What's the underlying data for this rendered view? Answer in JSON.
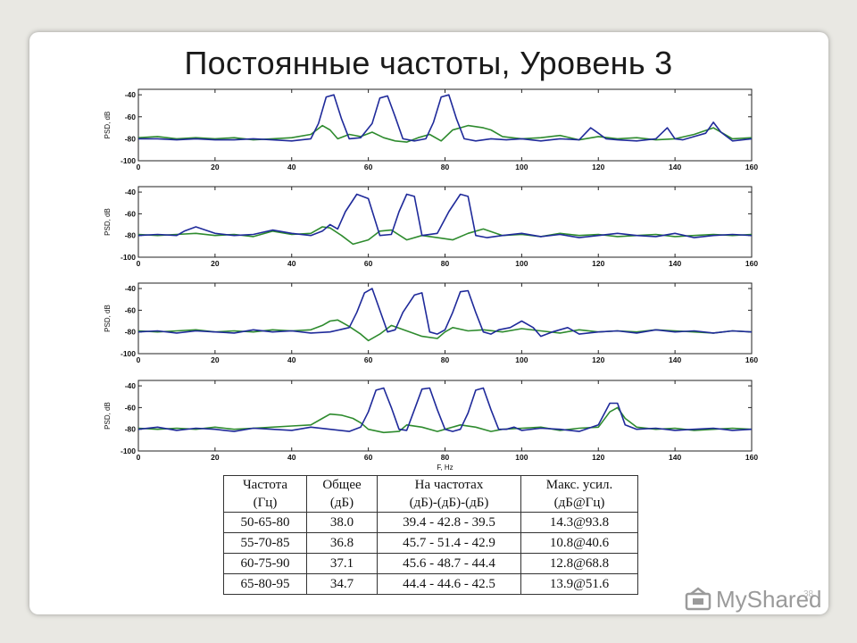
{
  "slide": {
    "title": "Постоянные частоты, Уровень 3",
    "page_number": "38",
    "watermark": "MyShared",
    "watermark_icon": "myshared-logo-icon"
  },
  "colors": {
    "blue": "#1f2a9a",
    "green": "#2e8b2e",
    "axis": "#222222"
  },
  "table": {
    "headers": [
      [
        "Частота",
        "(Гц)"
      ],
      [
        "Общее",
        "(дБ)"
      ],
      [
        "На частотах",
        "(дБ)-(дБ)-(дБ)"
      ],
      [
        "Макс. усил.",
        "(дБ@Гц)"
      ]
    ],
    "rows": [
      [
        "50-65-80",
        "38.0",
        "39.4 - 42.8 - 39.5",
        "14.3@93.8"
      ],
      [
        "55-70-85",
        "36.8",
        "45.7 - 51.4 - 42.9",
        "10.8@40.6"
      ],
      [
        "60-75-90",
        "37.1",
        "45.6 - 48.7 - 44.4",
        "12.8@68.8"
      ],
      [
        "65-80-95",
        "34.7",
        "44.4 - 44.6 - 42.5",
        "13.9@51.6"
      ]
    ]
  },
  "chart_data": [
    {
      "type": "line",
      "ylabel": "PSD, dB",
      "xlabel": "",
      "xlim": [
        0,
        160
      ],
      "ylim": [
        -100,
        -35
      ],
      "xticks": [
        0,
        20,
        40,
        60,
        80,
        100,
        120,
        140,
        160
      ],
      "yticks": [
        -40,
        -60,
        -80,
        -100
      ],
      "series": [
        {
          "color": "#1f2a9a",
          "x": [
            0,
            5,
            10,
            15,
            20,
            25,
            30,
            35,
            40,
            45,
            47,
            49,
            51,
            53,
            55,
            58,
            61,
            63,
            65,
            67,
            69,
            72,
            75,
            77,
            79,
            81,
            83,
            85,
            88,
            92,
            96,
            100,
            105,
            110,
            115,
            118,
            120,
            122,
            125,
            130,
            135,
            138,
            140,
            142,
            145,
            148,
            150,
            152,
            155,
            160
          ],
          "y": [
            -80,
            -80,
            -81,
            -80,
            -81,
            -81,
            -80,
            -81,
            -82,
            -80,
            -66,
            -42,
            -40,
            -62,
            -80,
            -79,
            -66,
            -43,
            -41,
            -60,
            -80,
            -82,
            -80,
            -65,
            -42,
            -40,
            -62,
            -80,
            -82,
            -80,
            -81,
            -80,
            -82,
            -80,
            -81,
            -70,
            -75,
            -80,
            -81,
            -82,
            -80,
            -70,
            -80,
            -81,
            -78,
            -75,
            -65,
            -74,
            -82,
            -80
          ]
        },
        {
          "color": "#2e8b2e",
          "x": [
            0,
            5,
            10,
            15,
            20,
            25,
            30,
            35,
            40,
            45,
            48,
            50,
            52,
            55,
            58,
            61,
            64,
            67,
            70,
            73,
            76,
            79,
            82,
            84,
            86,
            88,
            90,
            92,
            95,
            100,
            105,
            110,
            115,
            120,
            125,
            130,
            135,
            140,
            145,
            150,
            155,
            160
          ],
          "y": [
            -79,
            -78,
            -80,
            -79,
            -80,
            -79,
            -81,
            -80,
            -79,
            -76,
            -68,
            -72,
            -80,
            -76,
            -78,
            -74,
            -79,
            -82,
            -83,
            -79,
            -76,
            -82,
            -72,
            -70,
            -68,
            -69,
            -70,
            -72,
            -78,
            -80,
            -79,
            -77,
            -81,
            -78,
            -80,
            -79,
            -81,
            -80,
            -76,
            -70,
            -80,
            -79
          ]
        }
      ]
    },
    {
      "type": "line",
      "ylabel": "PSD, dB",
      "xlabel": "",
      "xlim": [
        0,
        160
      ],
      "ylim": [
        -100,
        -35
      ],
      "xticks": [
        0,
        20,
        40,
        60,
        80,
        100,
        120,
        140,
        160
      ],
      "yticks": [
        -40,
        -60,
        -80,
        -100
      ],
      "series": [
        {
          "color": "#1f2a9a",
          "x": [
            0,
            5,
            10,
            12,
            15,
            20,
            25,
            30,
            35,
            40,
            45,
            48,
            50,
            52,
            54,
            57,
            60,
            63,
            66,
            68,
            70,
            72,
            74,
            78,
            81,
            84,
            86,
            88,
            91,
            95,
            100,
            105,
            110,
            115,
            120,
            125,
            130,
            135,
            140,
            145,
            150,
            155,
            160
          ],
          "y": [
            -80,
            -79,
            -80,
            -76,
            -72,
            -78,
            -80,
            -79,
            -75,
            -78,
            -80,
            -76,
            -70,
            -74,
            -58,
            -42,
            -46,
            -80,
            -79,
            -58,
            -42,
            -44,
            -80,
            -78,
            -58,
            -42,
            -44,
            -80,
            -82,
            -80,
            -78,
            -81,
            -79,
            -82,
            -80,
            -78,
            -80,
            -81,
            -78,
            -82,
            -80,
            -79,
            -80
          ]
        },
        {
          "color": "#2e8b2e",
          "x": [
            0,
            5,
            10,
            15,
            20,
            25,
            30,
            35,
            40,
            45,
            48,
            50,
            53,
            56,
            60,
            63,
            66,
            70,
            74,
            78,
            82,
            86,
            90,
            95,
            100,
            105,
            110,
            115,
            120,
            125,
            130,
            135,
            140,
            145,
            150,
            155,
            160
          ],
          "y": [
            -79,
            -80,
            -79,
            -78,
            -80,
            -79,
            -81,
            -76,
            -79,
            -78,
            -72,
            -73,
            -80,
            -88,
            -84,
            -76,
            -75,
            -84,
            -80,
            -82,
            -84,
            -78,
            -74,
            -80,
            -79,
            -81,
            -78,
            -80,
            -79,
            -81,
            -80,
            -79,
            -81,
            -80,
            -79,
            -80,
            -79
          ]
        }
      ]
    },
    {
      "type": "line",
      "ylabel": "PSD, dB",
      "xlabel": "",
      "xlim": [
        0,
        160
      ],
      "ylim": [
        -100,
        -35
      ],
      "xticks": [
        0,
        20,
        40,
        60,
        80,
        100,
        120,
        140,
        160
      ],
      "yticks": [
        -40,
        -60,
        -80,
        -100
      ],
      "series": [
        {
          "color": "#1f2a9a",
          "x": [
            0,
            5,
            10,
            15,
            20,
            25,
            30,
            35,
            40,
            45,
            50,
            55,
            57,
            59,
            61,
            63,
            65,
            67,
            69,
            72,
            74,
            76,
            78,
            80,
            82,
            84,
            86,
            88,
            90,
            92,
            94,
            97,
            100,
            103,
            105,
            108,
            112,
            115,
            120,
            125,
            130,
            135,
            140,
            145,
            150,
            155,
            160
          ],
          "y": [
            -80,
            -79,
            -81,
            -79,
            -80,
            -81,
            -78,
            -80,
            -79,
            -81,
            -80,
            -76,
            -62,
            -44,
            -40,
            -60,
            -80,
            -78,
            -62,
            -46,
            -44,
            -80,
            -82,
            -78,
            -62,
            -43,
            -42,
            -62,
            -80,
            -82,
            -78,
            -76,
            -70,
            -76,
            -84,
            -80,
            -76,
            -82,
            -80,
            -79,
            -81,
            -78,
            -80,
            -79,
            -81,
            -79,
            -80
          ]
        },
        {
          "color": "#2e8b2e",
          "x": [
            0,
            5,
            10,
            15,
            20,
            25,
            30,
            35,
            40,
            45,
            48,
            50,
            52,
            55,
            58,
            60,
            63,
            66,
            70,
            74,
            78,
            80,
            82,
            86,
            90,
            95,
            100,
            105,
            110,
            115,
            120,
            125,
            130,
            135,
            140,
            145,
            150,
            155,
            160
          ],
          "y": [
            -79,
            -80,
            -79,
            -78,
            -80,
            -79,
            -80,
            -78,
            -79,
            -78,
            -74,
            -70,
            -69,
            -75,
            -82,
            -88,
            -82,
            -74,
            -79,
            -84,
            -86,
            -80,
            -76,
            -79,
            -78,
            -80,
            -77,
            -79,
            -81,
            -78,
            -80,
            -79,
            -80,
            -78,
            -79,
            -80,
            -81,
            -79,
            -80
          ]
        }
      ]
    },
    {
      "type": "line",
      "ylabel": "PSD, dB",
      "xlabel": "F, Hz",
      "xlim": [
        0,
        160
      ],
      "ylim": [
        -100,
        -35
      ],
      "xticks": [
        0,
        20,
        40,
        60,
        80,
        100,
        120,
        140,
        160
      ],
      "yticks": [
        -40,
        -60,
        -80,
        -100
      ],
      "series": [
        {
          "color": "#1f2a9a",
          "x": [
            0,
            5,
            10,
            15,
            20,
            25,
            30,
            35,
            40,
            45,
            50,
            55,
            58,
            60,
            62,
            64,
            66,
            68,
            70,
            72,
            74,
            76,
            78,
            80,
            82,
            84,
            86,
            88,
            90,
            92,
            94,
            96,
            98,
            100,
            105,
            110,
            115,
            120,
            123,
            125,
            127,
            130,
            135,
            140,
            145,
            150,
            155,
            160
          ],
          "y": [
            -80,
            -78,
            -81,
            -79,
            -80,
            -82,
            -79,
            -80,
            -81,
            -78,
            -80,
            -82,
            -78,
            -64,
            -44,
            -42,
            -60,
            -80,
            -81,
            -62,
            -43,
            -42,
            -62,
            -80,
            -82,
            -80,
            -65,
            -44,
            -42,
            -62,
            -80,
            -80,
            -78,
            -81,
            -79,
            -80,
            -82,
            -76,
            -56,
            -56,
            -76,
            -80,
            -79,
            -81,
            -80,
            -79,
            -81,
            -80
          ]
        },
        {
          "color": "#2e8b2e",
          "x": [
            0,
            5,
            10,
            15,
            20,
            25,
            30,
            35,
            40,
            45,
            48,
            50,
            53,
            56,
            58,
            60,
            64,
            68,
            70,
            74,
            78,
            80,
            84,
            88,
            92,
            95,
            100,
            105,
            110,
            115,
            120,
            123,
            125,
            127,
            130,
            135,
            140,
            145,
            150,
            155,
            160
          ],
          "y": [
            -79,
            -80,
            -79,
            -80,
            -78,
            -80,
            -79,
            -78,
            -77,
            -76,
            -70,
            -66,
            -67,
            -70,
            -74,
            -80,
            -83,
            -82,
            -76,
            -78,
            -82,
            -80,
            -76,
            -78,
            -82,
            -80,
            -79,
            -78,
            -81,
            -79,
            -78,
            -64,
            -60,
            -70,
            -78,
            -80,
            -79,
            -81,
            -80,
            -79,
            -80
          ]
        }
      ]
    }
  ]
}
